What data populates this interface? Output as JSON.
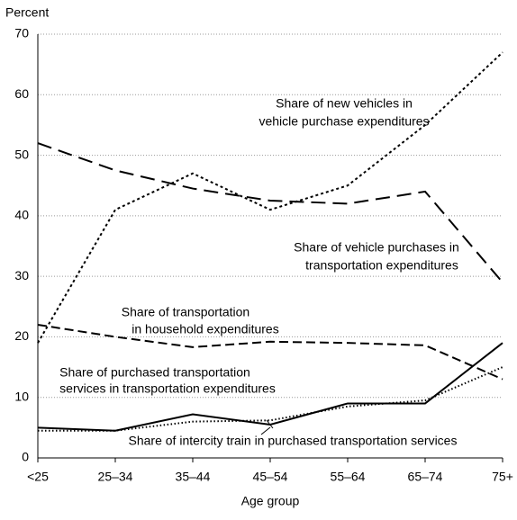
{
  "chart_data": {
    "type": "line",
    "y_label": "Percent",
    "x_label": "Age group",
    "categories": [
      "<25",
      "25–34",
      "35–44",
      "45–54",
      "55–64",
      "65–74",
      "75+"
    ],
    "ylim": [
      0,
      70
    ],
    "yticks": [
      0,
      10,
      20,
      30,
      40,
      50,
      60,
      70
    ],
    "grid": true,
    "series": [
      {
        "name": [
          "Share of new vehicles in",
          "vehicle purchase expenditures"
        ],
        "color": "#000000",
        "dash": "3,3",
        "values": [
          19,
          41,
          47,
          41,
          45,
          55,
          67
        ]
      },
      {
        "name": [
          "Share of vehicle purchases in",
          "transportation expenditures"
        ],
        "color": "#000000",
        "dash": "16,8",
        "values": [
          52,
          47.5,
          44.5,
          42.5,
          42,
          44,
          29
        ]
      },
      {
        "name": [
          "Share of transportation",
          "in household expenditures"
        ],
        "color": "#000000",
        "dash": "10,5",
        "values": [
          22,
          20,
          18.3,
          19.2,
          19,
          18.6,
          13
        ]
      },
      {
        "name": [
          "Share of purchased transportation",
          "services in transportation expenditures"
        ],
        "color": "#000000",
        "dash": "none",
        "values": [
          5,
          4.5,
          7.2,
          5.5,
          9,
          9,
          19
        ]
      },
      {
        "name": [
          "Share of intercity train in purchased transportation services"
        ],
        "color": "#000000",
        "dash": "1.5,2.5",
        "values": [
          4.5,
          4.5,
          6,
          6.2,
          8.5,
          9.5,
          15
        ]
      }
    ]
  }
}
